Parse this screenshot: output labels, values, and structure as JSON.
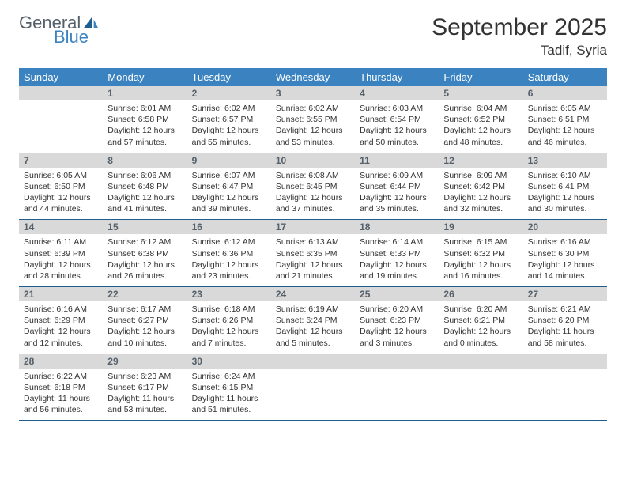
{
  "brand": {
    "general": "General",
    "blue": "Blue"
  },
  "title": "September 2025",
  "location": "Tadif, Syria",
  "day_headers": [
    "Sunday",
    "Monday",
    "Tuesday",
    "Wednesday",
    "Thursday",
    "Friday",
    "Saturday"
  ],
  "colors": {
    "header_bg": "#3b83c0",
    "header_text": "#ffffff",
    "daynum_bg": "#d9d9d9",
    "daynum_text": "#55606a",
    "row_border": "#1f5d8f",
    "body_text": "#333333",
    "logo_grey": "#55606a",
    "logo_blue": "#3b83c0"
  },
  "typography": {
    "title_fontsize": 30,
    "location_fontsize": 17,
    "dayheader_fontsize": 13,
    "daynum_fontsize": 12,
    "cell_fontsize": 10.5
  },
  "weeks": [
    [
      {
        "n": "",
        "lines": [
          "",
          "",
          "",
          ""
        ]
      },
      {
        "n": "1",
        "lines": [
          "Sunrise: 6:01 AM",
          "Sunset: 6:58 PM",
          "Daylight: 12 hours",
          "and 57 minutes."
        ]
      },
      {
        "n": "2",
        "lines": [
          "Sunrise: 6:02 AM",
          "Sunset: 6:57 PM",
          "Daylight: 12 hours",
          "and 55 minutes."
        ]
      },
      {
        "n": "3",
        "lines": [
          "Sunrise: 6:02 AM",
          "Sunset: 6:55 PM",
          "Daylight: 12 hours",
          "and 53 minutes."
        ]
      },
      {
        "n": "4",
        "lines": [
          "Sunrise: 6:03 AM",
          "Sunset: 6:54 PM",
          "Daylight: 12 hours",
          "and 50 minutes."
        ]
      },
      {
        "n": "5",
        "lines": [
          "Sunrise: 6:04 AM",
          "Sunset: 6:52 PM",
          "Daylight: 12 hours",
          "and 48 minutes."
        ]
      },
      {
        "n": "6",
        "lines": [
          "Sunrise: 6:05 AM",
          "Sunset: 6:51 PM",
          "Daylight: 12 hours",
          "and 46 minutes."
        ]
      }
    ],
    [
      {
        "n": "7",
        "lines": [
          "Sunrise: 6:05 AM",
          "Sunset: 6:50 PM",
          "Daylight: 12 hours",
          "and 44 minutes."
        ]
      },
      {
        "n": "8",
        "lines": [
          "Sunrise: 6:06 AM",
          "Sunset: 6:48 PM",
          "Daylight: 12 hours",
          "and 41 minutes."
        ]
      },
      {
        "n": "9",
        "lines": [
          "Sunrise: 6:07 AM",
          "Sunset: 6:47 PM",
          "Daylight: 12 hours",
          "and 39 minutes."
        ]
      },
      {
        "n": "10",
        "lines": [
          "Sunrise: 6:08 AM",
          "Sunset: 6:45 PM",
          "Daylight: 12 hours",
          "and 37 minutes."
        ]
      },
      {
        "n": "11",
        "lines": [
          "Sunrise: 6:09 AM",
          "Sunset: 6:44 PM",
          "Daylight: 12 hours",
          "and 35 minutes."
        ]
      },
      {
        "n": "12",
        "lines": [
          "Sunrise: 6:09 AM",
          "Sunset: 6:42 PM",
          "Daylight: 12 hours",
          "and 32 minutes."
        ]
      },
      {
        "n": "13",
        "lines": [
          "Sunrise: 6:10 AM",
          "Sunset: 6:41 PM",
          "Daylight: 12 hours",
          "and 30 minutes."
        ]
      }
    ],
    [
      {
        "n": "14",
        "lines": [
          "Sunrise: 6:11 AM",
          "Sunset: 6:39 PM",
          "Daylight: 12 hours",
          "and 28 minutes."
        ]
      },
      {
        "n": "15",
        "lines": [
          "Sunrise: 6:12 AM",
          "Sunset: 6:38 PM",
          "Daylight: 12 hours",
          "and 26 minutes."
        ]
      },
      {
        "n": "16",
        "lines": [
          "Sunrise: 6:12 AM",
          "Sunset: 6:36 PM",
          "Daylight: 12 hours",
          "and 23 minutes."
        ]
      },
      {
        "n": "17",
        "lines": [
          "Sunrise: 6:13 AM",
          "Sunset: 6:35 PM",
          "Daylight: 12 hours",
          "and 21 minutes."
        ]
      },
      {
        "n": "18",
        "lines": [
          "Sunrise: 6:14 AM",
          "Sunset: 6:33 PM",
          "Daylight: 12 hours",
          "and 19 minutes."
        ]
      },
      {
        "n": "19",
        "lines": [
          "Sunrise: 6:15 AM",
          "Sunset: 6:32 PM",
          "Daylight: 12 hours",
          "and 16 minutes."
        ]
      },
      {
        "n": "20",
        "lines": [
          "Sunrise: 6:16 AM",
          "Sunset: 6:30 PM",
          "Daylight: 12 hours",
          "and 14 minutes."
        ]
      }
    ],
    [
      {
        "n": "21",
        "lines": [
          "Sunrise: 6:16 AM",
          "Sunset: 6:29 PM",
          "Daylight: 12 hours",
          "and 12 minutes."
        ]
      },
      {
        "n": "22",
        "lines": [
          "Sunrise: 6:17 AM",
          "Sunset: 6:27 PM",
          "Daylight: 12 hours",
          "and 10 minutes."
        ]
      },
      {
        "n": "23",
        "lines": [
          "Sunrise: 6:18 AM",
          "Sunset: 6:26 PM",
          "Daylight: 12 hours",
          "and 7 minutes."
        ]
      },
      {
        "n": "24",
        "lines": [
          "Sunrise: 6:19 AM",
          "Sunset: 6:24 PM",
          "Daylight: 12 hours",
          "and 5 minutes."
        ]
      },
      {
        "n": "25",
        "lines": [
          "Sunrise: 6:20 AM",
          "Sunset: 6:23 PM",
          "Daylight: 12 hours",
          "and 3 minutes."
        ]
      },
      {
        "n": "26",
        "lines": [
          "Sunrise: 6:20 AM",
          "Sunset: 6:21 PM",
          "Daylight: 12 hours",
          "and 0 minutes."
        ]
      },
      {
        "n": "27",
        "lines": [
          "Sunrise: 6:21 AM",
          "Sunset: 6:20 PM",
          "Daylight: 11 hours",
          "and 58 minutes."
        ]
      }
    ],
    [
      {
        "n": "28",
        "lines": [
          "Sunrise: 6:22 AM",
          "Sunset: 6:18 PM",
          "Daylight: 11 hours",
          "and 56 minutes."
        ]
      },
      {
        "n": "29",
        "lines": [
          "Sunrise: 6:23 AM",
          "Sunset: 6:17 PM",
          "Daylight: 11 hours",
          "and 53 minutes."
        ]
      },
      {
        "n": "30",
        "lines": [
          "Sunrise: 6:24 AM",
          "Sunset: 6:15 PM",
          "Daylight: 11 hours",
          "and 51 minutes."
        ]
      },
      {
        "n": "",
        "lines": [
          "",
          "",
          "",
          ""
        ]
      },
      {
        "n": "",
        "lines": [
          "",
          "",
          "",
          ""
        ]
      },
      {
        "n": "",
        "lines": [
          "",
          "",
          "",
          ""
        ]
      },
      {
        "n": "",
        "lines": [
          "",
          "",
          "",
          ""
        ]
      }
    ]
  ]
}
